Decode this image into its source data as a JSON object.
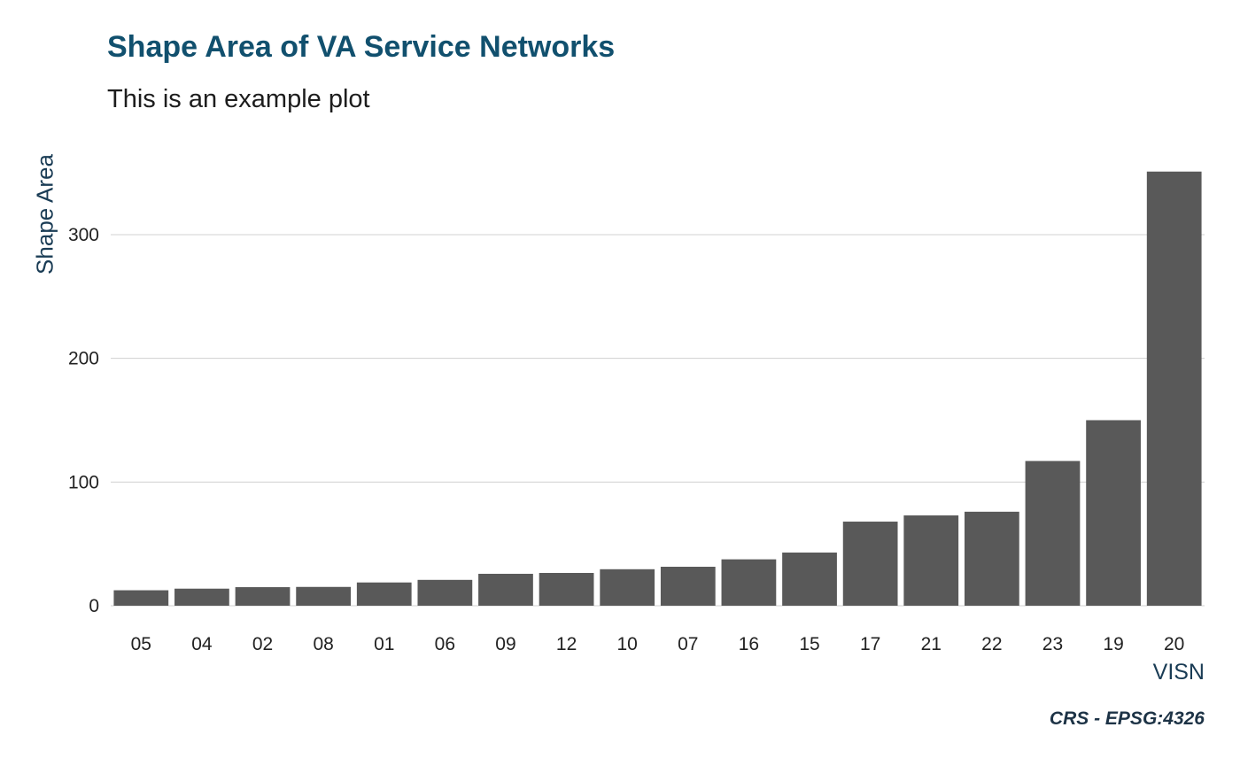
{
  "chart_data": {
    "type": "bar",
    "title": "Shape Area of VA Service Networks",
    "subtitle": "This is an example plot",
    "xlabel": "VISN",
    "ylabel": "Shape Area",
    "caption": "CRS - EPSG:4326",
    "categories": [
      "05",
      "04",
      "02",
      "08",
      "01",
      "06",
      "09",
      "12",
      "10",
      "07",
      "16",
      "15",
      "17",
      "21",
      "22",
      "23",
      "19",
      "20"
    ],
    "values": [
      12.5,
      13.8,
      15,
      15.2,
      18.8,
      20.9,
      25.8,
      26.5,
      29.5,
      31.5,
      37.5,
      43,
      68,
      73,
      76,
      117,
      150,
      351
    ],
    "yticks": [
      0,
      100,
      200,
      300
    ],
    "ylim": [
      0,
      368
    ],
    "grid": true,
    "bar_color": "#595959",
    "grid_color": "#d0d0d0"
  }
}
